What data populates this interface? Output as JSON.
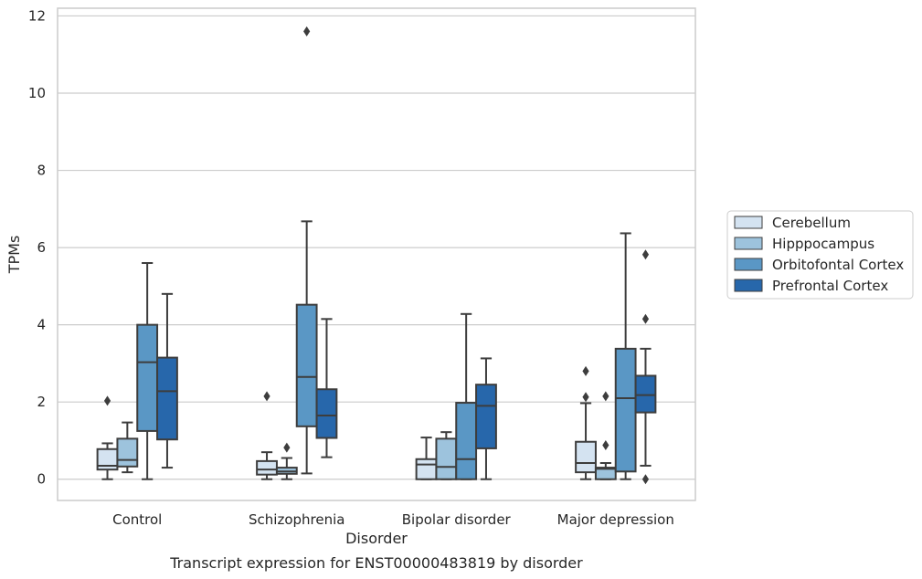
{
  "chart_data": {
    "type": "box",
    "xlabel": "Disorder",
    "ylabel": "TPMs",
    "caption": "Transcript expression for ENST00000483819 by disorder",
    "ylim": [
      -0.55,
      12.2
    ],
    "yticks": [
      "0",
      "2",
      "4",
      "6",
      "8",
      "10",
      "12"
    ],
    "grid": "y",
    "legend_position": "right",
    "categories": [
      "Control",
      "Schizophrenia",
      "Bipolar disorder",
      "Major depression"
    ],
    "series": [
      {
        "name": "Cerebellum",
        "color": "#d4e3f1",
        "boxes": [
          {
            "whislo": 0.0,
            "q1": 0.25,
            "med": 0.35,
            "q3": 0.78,
            "whishi": 0.93,
            "fliers": [
              2.03
            ]
          },
          {
            "whislo": 0.0,
            "q1": 0.12,
            "med": 0.25,
            "q3": 0.47,
            "whishi": 0.7,
            "fliers": [
              2.15
            ]
          },
          {
            "whislo": 0.0,
            "q1": 0.0,
            "med": 0.38,
            "q3": 0.52,
            "whishi": 1.08,
            "fliers": []
          },
          {
            "whislo": 0.0,
            "q1": 0.18,
            "med": 0.42,
            "q3": 0.97,
            "whishi": 1.97,
            "fliers": [
              2.13,
              2.8
            ]
          }
        ]
      },
      {
        "name": "Hipppocampus",
        "color": "#9dc3dd",
        "boxes": [
          {
            "whislo": 0.18,
            "q1": 0.33,
            "med": 0.5,
            "q3": 1.05,
            "whishi": 1.47,
            "fliers": []
          },
          {
            "whislo": 0.0,
            "q1": 0.14,
            "med": 0.2,
            "q3": 0.3,
            "whishi": 0.55,
            "fliers": [
              0.82
            ]
          },
          {
            "whislo": 0.0,
            "q1": 0.0,
            "med": 0.32,
            "q3": 1.05,
            "whishi": 1.22,
            "fliers": []
          },
          {
            "whislo": 0.0,
            "q1": 0.0,
            "med": 0.27,
            "q3": 0.3,
            "whishi": 0.42,
            "fliers": [
              0.88,
              2.15
            ]
          }
        ]
      },
      {
        "name": "Orbitofontal Cortex",
        "color": "#5a97c5",
        "boxes": [
          {
            "whislo": 0.0,
            "q1": 1.25,
            "med": 3.03,
            "q3": 4.0,
            "whishi": 5.6,
            "fliers": []
          },
          {
            "whislo": 0.15,
            "q1": 1.37,
            "med": 2.65,
            "q3": 4.52,
            "whishi": 6.68,
            "fliers": [
              11.6
            ]
          },
          {
            "whislo": 0.0,
            "q1": 0.0,
            "med": 0.52,
            "q3": 1.98,
            "whishi": 4.28,
            "fliers": []
          },
          {
            "whislo": 0.0,
            "q1": 0.2,
            "med": 2.1,
            "q3": 3.38,
            "whishi": 6.37,
            "fliers": []
          }
        ]
      },
      {
        "name": "Prefrontal Cortex",
        "color": "#2767ab",
        "boxes": [
          {
            "whislo": 0.3,
            "q1": 1.03,
            "med": 2.28,
            "q3": 3.15,
            "whishi": 4.8,
            "fliers": []
          },
          {
            "whislo": 0.57,
            "q1": 1.07,
            "med": 1.65,
            "q3": 2.33,
            "whishi": 4.15,
            "fliers": []
          },
          {
            "whislo": 0.0,
            "q1": 0.8,
            "med": 1.9,
            "q3": 2.45,
            "whishi": 3.13,
            "fliers": []
          },
          {
            "whislo": 0.35,
            "q1": 1.73,
            "med": 2.18,
            "q3": 2.68,
            "whishi": 3.38,
            "fliers": [
              0.0,
              4.15,
              5.82
            ]
          }
        ]
      }
    ]
  }
}
